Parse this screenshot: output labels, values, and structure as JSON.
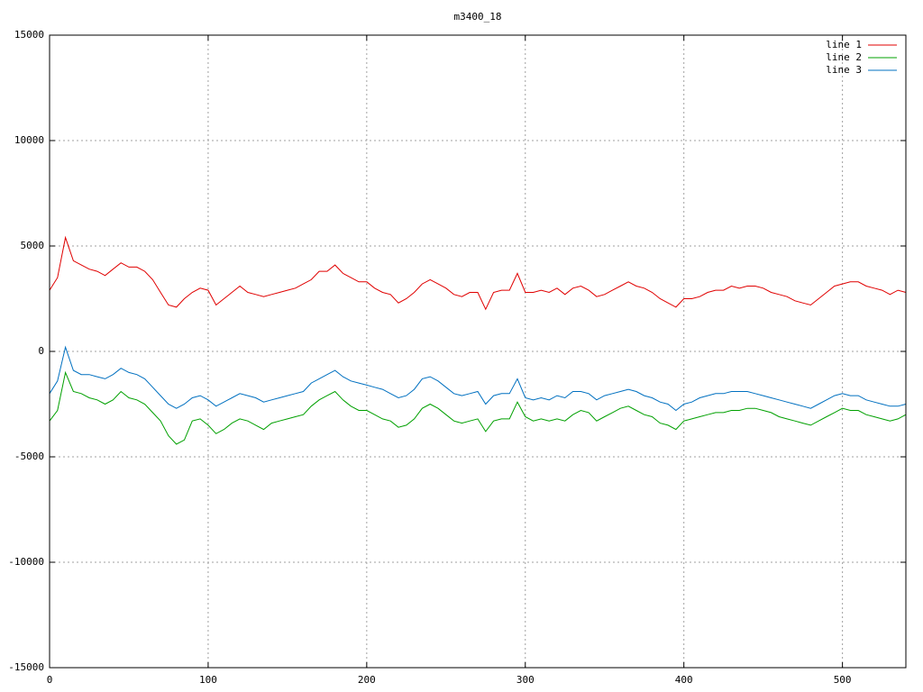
{
  "chart_data": {
    "type": "line",
    "title": "m3400_18",
    "x": [
      0,
      5,
      10,
      15,
      20,
      25,
      30,
      35,
      40,
      45,
      50,
      55,
      60,
      65,
      70,
      75,
      80,
      85,
      90,
      95,
      100,
      105,
      110,
      115,
      120,
      125,
      130,
      135,
      140,
      145,
      150,
      155,
      160,
      165,
      170,
      175,
      180,
      185,
      190,
      195,
      200,
      205,
      210,
      215,
      220,
      225,
      230,
      235,
      240,
      245,
      250,
      255,
      260,
      265,
      270,
      275,
      280,
      285,
      290,
      295,
      300,
      305,
      310,
      315,
      320,
      325,
      330,
      335,
      340,
      345,
      350,
      355,
      360,
      365,
      370,
      375,
      380,
      385,
      390,
      395,
      400,
      405,
      410,
      415,
      420,
      425,
      430,
      435,
      440,
      445,
      450,
      455,
      460,
      465,
      470,
      475,
      480,
      485,
      490,
      495,
      500,
      505,
      510,
      515,
      520,
      525,
      530,
      535,
      540
    ],
    "series": [
      {
        "name": "line 1",
        "color": "#e00000",
        "values": [
          2900,
          3500,
          5400,
          4300,
          4100,
          3900,
          3800,
          3600,
          3900,
          4200,
          4000,
          4000,
          3800,
          3400,
          2800,
          2200,
          2100,
          2500,
          2800,
          3000,
          2900,
          2200,
          2500,
          2800,
          3100,
          2800,
          2700,
          2600,
          2700,
          2800,
          2900,
          3000,
          3200,
          3400,
          3800,
          3800,
          4100,
          3700,
          3500,
          3300,
          3300,
          3000,
          2800,
          2700,
          2300,
          2500,
          2800,
          3200,
          3400,
          3200,
          3000,
          2700,
          2600,
          2800,
          2800,
          2000,
          2800,
          2900,
          2900,
          3700,
          2800,
          2800,
          2900,
          2800,
          3000,
          2700,
          3000,
          3100,
          2900,
          2600,
          2700,
          2900,
          3100,
          3300,
          3100,
          3000,
          2800,
          2500,
          2300,
          2100,
          2500,
          2500,
          2600,
          2800,
          2900,
          2900,
          3100,
          3000,
          3100,
          3100,
          3000,
          2800,
          2700,
          2600,
          2400,
          2300,
          2200,
          2500,
          2800,
          3100,
          3200,
          3300,
          3300,
          3100,
          3000,
          2900,
          2700,
          2900,
          2800
        ]
      },
      {
        "name": "line 2",
        "color": "#00a000",
        "values": [
          -3300,
          -2800,
          -1000,
          -1900,
          -2000,
          -2200,
          -2300,
          -2500,
          -2300,
          -1900,
          -2200,
          -2300,
          -2500,
          -2900,
          -3300,
          -4000,
          -4400,
          -4200,
          -3300,
          -3200,
          -3500,
          -3900,
          -3700,
          -3400,
          -3200,
          -3300,
          -3500,
          -3700,
          -3400,
          -3300,
          -3200,
          -3100,
          -3000,
          -2600,
          -2300,
          -2100,
          -1900,
          -2300,
          -2600,
          -2800,
          -2800,
          -3000,
          -3200,
          -3300,
          -3600,
          -3500,
          -3200,
          -2700,
          -2500,
          -2700,
          -3000,
          -3300,
          -3400,
          -3300,
          -3200,
          -3800,
          -3300,
          -3200,
          -3200,
          -2400,
          -3100,
          -3300,
          -3200,
          -3300,
          -3200,
          -3300,
          -3000,
          -2800,
          -2900,
          -3300,
          -3100,
          -2900,
          -2700,
          -2600,
          -2800,
          -3000,
          -3100,
          -3400,
          -3500,
          -3700,
          -3300,
          -3200,
          -3100,
          -3000,
          -2900,
          -2900,
          -2800,
          -2800,
          -2700,
          -2700,
          -2800,
          -2900,
          -3100,
          -3200,
          -3300,
          -3400,
          -3500,
          -3300,
          -3100,
          -2900,
          -2700,
          -2800,
          -2800,
          -3000,
          -3100,
          -3200,
          -3300,
          -3200,
          -3000
        ]
      },
      {
        "name": "line 3",
        "color": "#0070c0",
        "values": [
          -2000,
          -1400,
          200,
          -900,
          -1100,
          -1100,
          -1200,
          -1300,
          -1100,
          -800,
          -1000,
          -1100,
          -1300,
          -1700,
          -2100,
          -2500,
          -2700,
          -2500,
          -2200,
          -2100,
          -2300,
          -2600,
          -2400,
          -2200,
          -2000,
          -2100,
          -2200,
          -2400,
          -2300,
          -2200,
          -2100,
          -2000,
          -1900,
          -1500,
          -1300,
          -1100,
          -900,
          -1200,
          -1400,
          -1500,
          -1600,
          -1700,
          -1800,
          -2000,
          -2200,
          -2100,
          -1800,
          -1300,
          -1200,
          -1400,
          -1700,
          -2000,
          -2100,
          -2000,
          -1900,
          -2500,
          -2100,
          -2000,
          -2000,
          -1300,
          -2200,
          -2300,
          -2200,
          -2300,
          -2100,
          -2200,
          -1900,
          -1900,
          -2000,
          -2300,
          -2100,
          -2000,
          -1900,
          -1800,
          -1900,
          -2100,
          -2200,
          -2400,
          -2500,
          -2800,
          -2500,
          -2400,
          -2200,
          -2100,
          -2000,
          -2000,
          -1900,
          -1900,
          -1900,
          -2000,
          -2100,
          -2200,
          -2300,
          -2400,
          -2500,
          -2600,
          -2700,
          -2500,
          -2300,
          -2100,
          -2000,
          -2100,
          -2100,
          -2300,
          -2400,
          -2500,
          -2600,
          -2600,
          -2500
        ]
      }
    ],
    "xlim": [
      0,
      540
    ],
    "xticks": [
      0,
      100,
      200,
      300,
      400,
      500
    ],
    "ylim": [
      -15000,
      15000
    ],
    "yticks": [
      -15000,
      -10000,
      -5000,
      0,
      5000,
      10000,
      15000
    ],
    "grid": true,
    "legend": "top-right"
  }
}
